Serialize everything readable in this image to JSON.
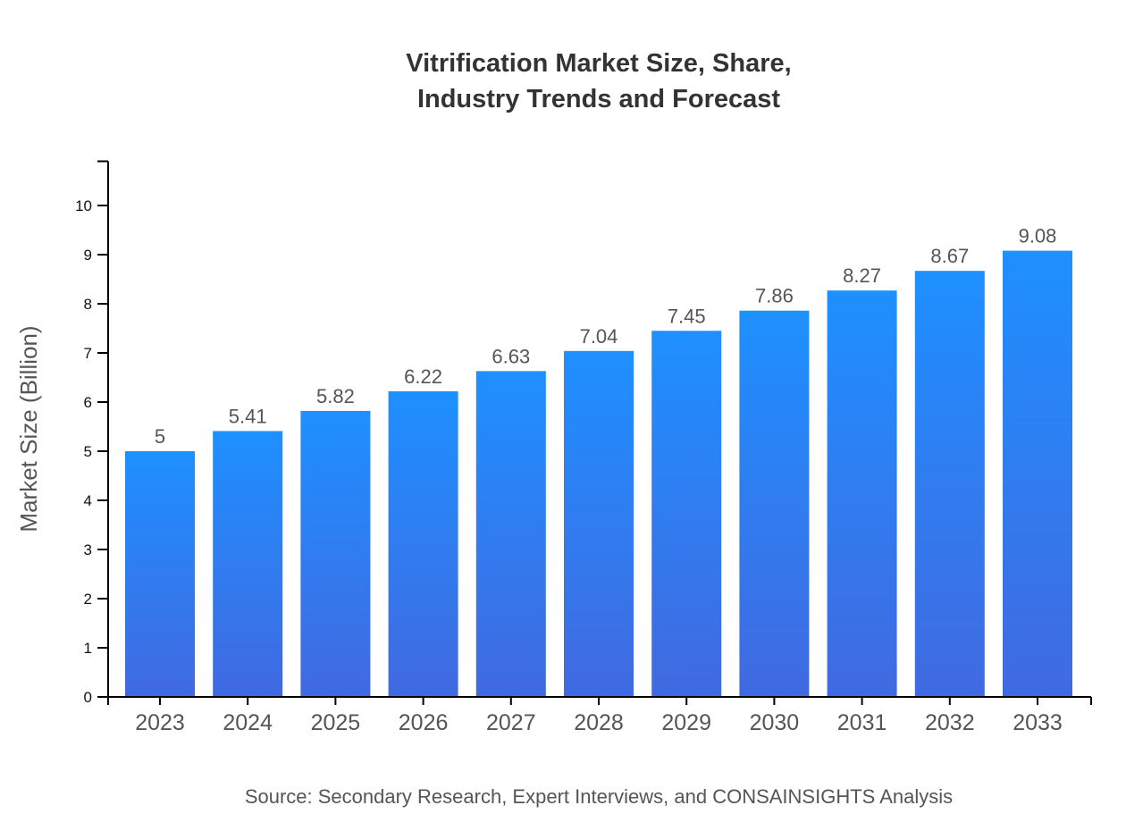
{
  "chart_data": {
    "type": "bar",
    "title_lines": [
      "Vitrification Market Size, Share,",
      "Industry Trends and Forecast"
    ],
    "xlabel": "",
    "ylabel": "Market Size (Billion)",
    "categories": [
      "2023",
      "2024",
      "2025",
      "2026",
      "2027",
      "2028",
      "2029",
      "2030",
      "2031",
      "2032",
      "2033"
    ],
    "values": [
      5,
      5.41,
      5.82,
      6.22,
      6.63,
      7.04,
      7.45,
      7.86,
      8.27,
      8.67,
      9.08
    ],
    "ylim": [
      0,
      10.9
    ],
    "yticks": [
      0,
      1,
      2,
      3,
      4,
      5,
      6,
      7,
      8,
      9,
      10
    ],
    "grid": false,
    "bar_gradient": [
      "#1e90ff",
      "#4169e1"
    ],
    "source": "Source: Secondary Research, Expert Interviews, and CONSAINSIGHTS Analysis"
  }
}
